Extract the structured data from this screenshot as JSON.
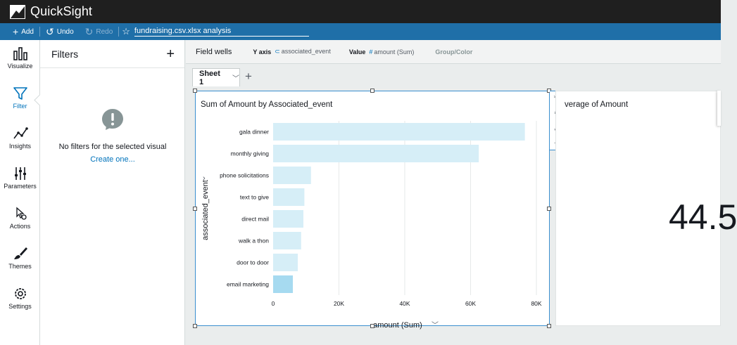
{
  "app": {
    "title": "QuickSight"
  },
  "toolbar": {
    "add_label": "Add",
    "undo_label": "Undo",
    "redo_label": "Redo",
    "analysis_name": "fundraising.csv.xlsx analysis"
  },
  "nav": {
    "items": [
      {
        "label": "Visualize",
        "icon": "bar-chart-icon"
      },
      {
        "label": "Filter",
        "icon": "funnel-icon",
        "active": true
      },
      {
        "label": "Insights",
        "icon": "insights-icon"
      },
      {
        "label": "Parameters",
        "icon": "sliders-icon"
      },
      {
        "label": "Actions",
        "icon": "pointer-gear-icon"
      },
      {
        "label": "Themes",
        "icon": "brush-icon"
      },
      {
        "label": "Settings",
        "icon": "gear-icon"
      }
    ]
  },
  "filters": {
    "title": "Filters",
    "empty_message": "No filters for the selected visual",
    "create_link": "Create one..."
  },
  "fieldwells": {
    "title": "Field wells",
    "y_axis_label": "Y axis",
    "y_axis_field": "associated_event",
    "value_label": "Value",
    "value_field": "amount (Sum)",
    "group_label": "Group/Color"
  },
  "sheet": {
    "tab_label": "Sheet 1"
  },
  "visual_right": {
    "title": "verage of Amount",
    "kpi_value": "44.5"
  },
  "chart_data": {
    "type": "bar",
    "orientation": "horizontal",
    "title": "Sum of Amount by Associated_event",
    "ylabel": "associated_event",
    "xlabel": "amount (Sum)",
    "categories": [
      "gala dinner",
      "monthly giving",
      "phone solicitations",
      "text to give",
      "direct mail",
      "walk a thon",
      "door to door",
      "email marketing"
    ],
    "values": [
      76500,
      62500,
      11500,
      9500,
      9200,
      8500,
      7500,
      6000
    ],
    "xlim": [
      0,
      80000
    ],
    "ticks": [
      0,
      20000,
      40000,
      60000,
      80000
    ],
    "tick_labels": [
      "0",
      "20K",
      "40K",
      "60K",
      "80K"
    ],
    "grid": true,
    "colors": {
      "bar": "#d6eef7",
      "bar_highlight": "#a6daf0"
    }
  }
}
